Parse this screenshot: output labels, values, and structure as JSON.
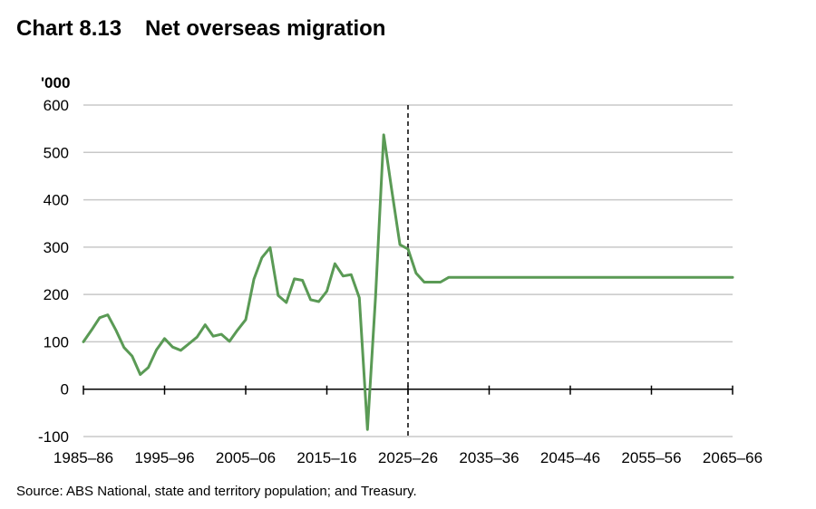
{
  "header": {
    "chart_number": "Chart 8.13",
    "chart_title": "Net overseas migration"
  },
  "footer": {
    "source": "Source: ABS National, state and territory population; and Treasury."
  },
  "colors": {
    "series": "#5a9a55",
    "grid": "#c8c8c8",
    "axis": "#000000",
    "projection_marker": "#000000"
  },
  "chart_data": {
    "type": "line",
    "title": "Net overseas migration",
    "ylabel": "'000",
    "xlabel": "",
    "ylim": [
      -100,
      600
    ],
    "yticks": [
      -100,
      0,
      100,
      200,
      300,
      400,
      500,
      600
    ],
    "xlim": [
      1985,
      2065
    ],
    "xtick_years": [
      1985,
      1995,
      2005,
      2015,
      2025,
      2035,
      2045,
      2055,
      2065
    ],
    "xtick_labels": [
      "1985–86",
      "1995–96",
      "2005–06",
      "2015–16",
      "2025–26",
      "2035–36",
      "2045–46",
      "2055–56",
      "2065–66"
    ],
    "grid": "horizontal",
    "legend": "none",
    "projection_start": "2025–26",
    "series": [
      {
        "name": "",
        "x": [
          1985,
          1986,
          1987,
          1988,
          1989,
          1990,
          1991,
          1992,
          1993,
          1994,
          1995,
          1996,
          1997,
          1998,
          1999,
          2000,
          2001,
          2002,
          2003,
          2004,
          2005,
          2006,
          2007,
          2008,
          2009,
          2010,
          2011,
          2012,
          2013,
          2014,
          2015,
          2016,
          2017,
          2018,
          2019,
          2020,
          2021,
          2022,
          2023,
          2024,
          2025,
          2026,
          2027,
          2028,
          2029,
          2030,
          2035,
          2045,
          2055,
          2065
        ],
        "values": [
          100,
          125,
          151,
          157,
          125,
          88,
          70,
          31,
          46,
          83,
          107,
          89,
          82,
          96,
          110,
          136,
          112,
          116,
          101,
          125,
          147,
          232,
          278,
          299,
          198,
          183,
          233,
          230,
          189,
          185,
          207,
          265,
          239,
          242,
          193,
          -85,
          195,
          537,
          420,
          305,
          296,
          245,
          226,
          226,
          226,
          236,
          236,
          236,
          236,
          236
        ]
      }
    ]
  }
}
